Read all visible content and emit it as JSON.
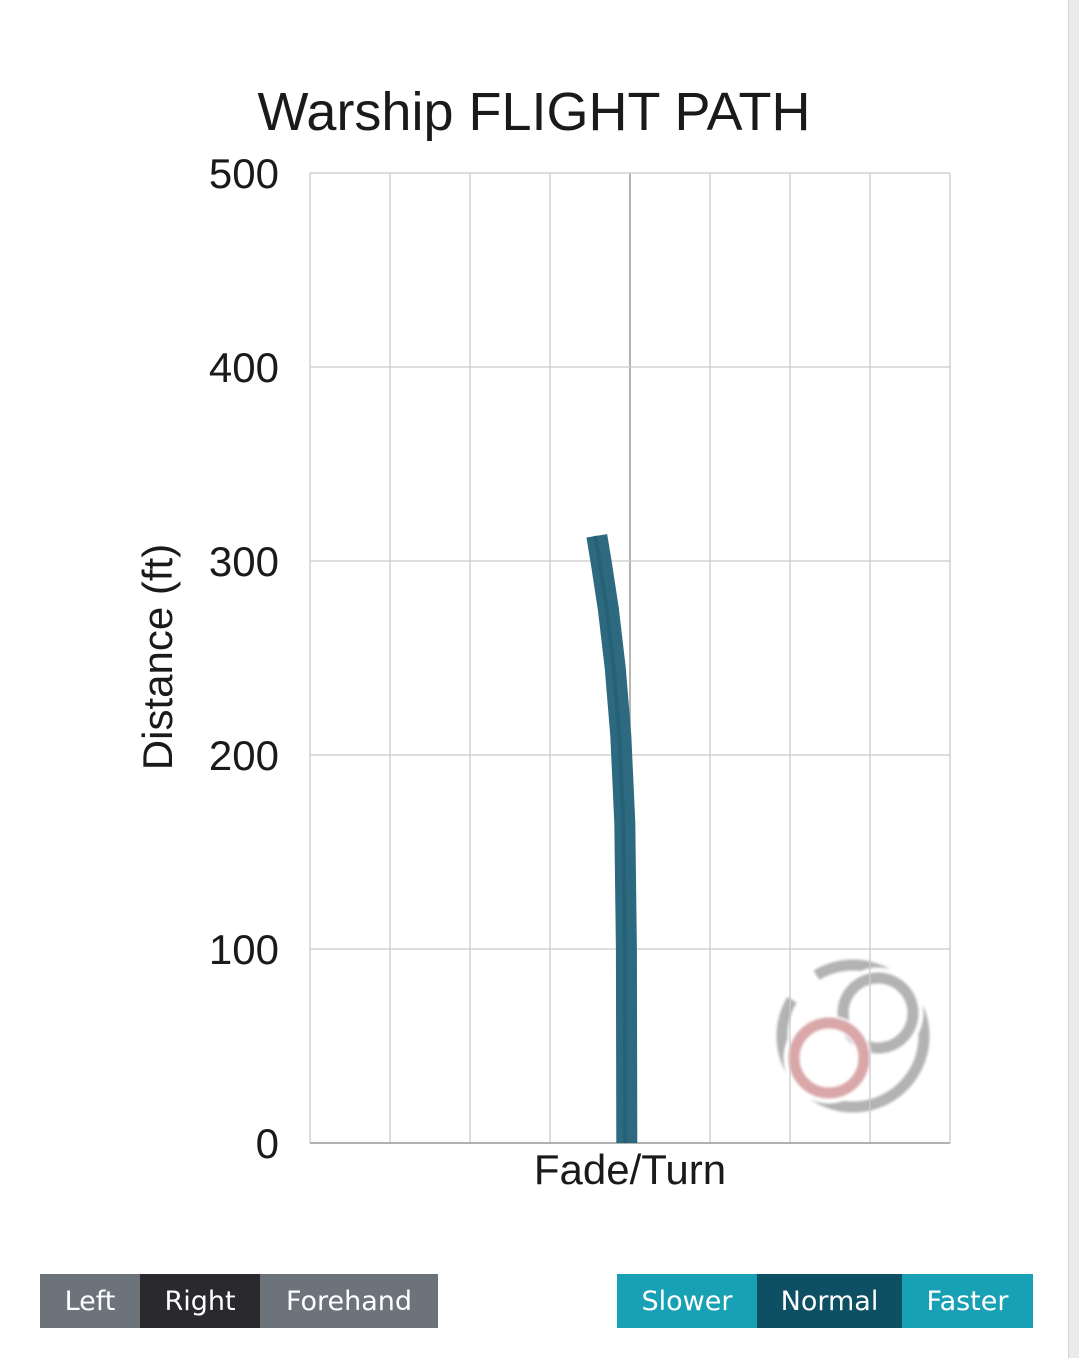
{
  "page": {
    "title": "Warship FLIGHT PATH"
  },
  "chart_data": {
    "type": "line",
    "title": "Warship FLIGHT PATH",
    "xlabel": "Fade/Turn",
    "ylabel": "Distance (ft)",
    "ylim": [
      0,
      500
    ],
    "xlim": [
      -4,
      4
    ],
    "x_grid_step": 1,
    "y_ticks": [
      0,
      100,
      200,
      300,
      400,
      500
    ],
    "grid": true,
    "legend": false,
    "series": [
      {
        "name": "Warship flight path",
        "color": "#2d6a80",
        "seam_color": "#1f5a70",
        "stroke_width": 21,
        "points": [
          {
            "fade_turn": -0.04,
            "distance_ft": 0
          },
          {
            "fade_turn": -0.045,
            "distance_ft": 100
          },
          {
            "fade_turn": -0.065,
            "distance_ft": 165
          },
          {
            "fade_turn": -0.115,
            "distance_ft": 210
          },
          {
            "fade_turn": -0.185,
            "distance_ft": 245
          },
          {
            "fade_turn": -0.27,
            "distance_ft": 275
          },
          {
            "fade_turn": -0.355,
            "distance_ft": 298
          },
          {
            "fade_turn": -0.415,
            "distance_ft": 313
          }
        ],
        "max_distance_ft": 313
      }
    ]
  },
  "controls": {
    "handedness": {
      "options": [
        "Left",
        "Right",
        "Forehand"
      ],
      "selected": "Right",
      "selected_index": 1
    },
    "speed": {
      "options": [
        "Slower",
        "Normal",
        "Faster"
      ],
      "selected": "Normal",
      "selected_index": 1
    }
  },
  "watermark": {
    "icon": "infinity-circle-logo",
    "ring_color": "#616161",
    "red_loop_color": "#b2484e"
  },
  "colors": {
    "flight_path": "#2d6a80",
    "grid": "#cacaca",
    "center_gridline": "#9b9b9b",
    "axis_line": "#b0b0b0",
    "button_gray": "#6c737b",
    "button_gray_selected": "#2a2a2e",
    "button_teal": "#18a0b4",
    "button_teal_selected": "#0d4f63",
    "text": "#1a1a1a"
  }
}
